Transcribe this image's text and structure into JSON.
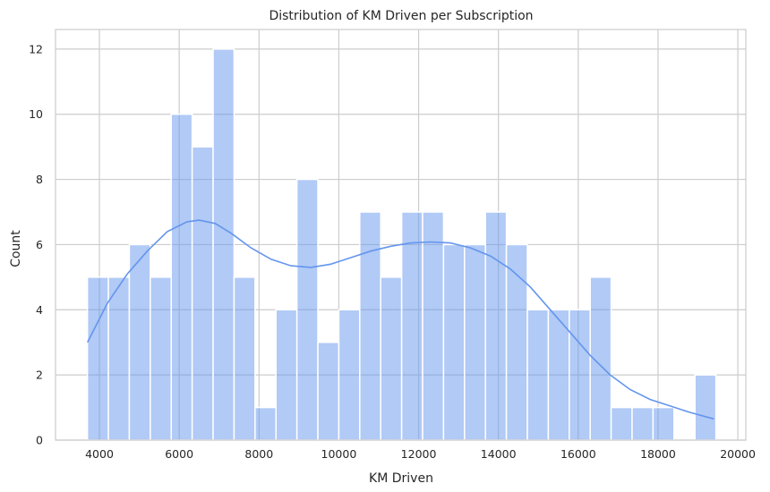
{
  "chart_data": {
    "type": "bar",
    "subtype": "histogram-with-kde",
    "title": "Distribution of KM Driven per Subscription",
    "xlabel": "KM Driven",
    "ylabel": "Count",
    "xlim": [
      2900,
      20200
    ],
    "ylim": [
      0,
      12.6
    ],
    "xticks": [
      4000,
      6000,
      8000,
      10000,
      12000,
      14000,
      16000,
      18000,
      20000
    ],
    "yticks": [
      0,
      2,
      4,
      6,
      8,
      10,
      12
    ],
    "grid": true,
    "bar_color": "#6495ed",
    "bins": {
      "start": 3700,
      "width": 525,
      "counts": [
        5,
        5,
        6,
        5,
        10,
        9,
        12,
        5,
        1,
        4,
        8,
        3,
        4,
        7,
        5,
        7,
        7,
        6,
        6,
        7,
        6,
        4,
        4,
        4,
        5,
        1,
        1,
        1,
        0,
        2
      ]
    },
    "kde": {
      "color": "#6495ed",
      "x": [
        3700,
        4200,
        4700,
        5200,
        5700,
        6200,
        6500,
        6900,
        7300,
        7800,
        8300,
        8800,
        9300,
        9800,
        10300,
        10800,
        11300,
        11800,
        12300,
        12800,
        13300,
        13800,
        14300,
        14800,
        15300,
        15800,
        16300,
        16800,
        17300,
        17800,
        18300,
        18800,
        19400
      ],
      "y": [
        3.0,
        4.2,
        5.1,
        5.8,
        6.4,
        6.7,
        6.75,
        6.65,
        6.35,
        5.9,
        5.55,
        5.35,
        5.3,
        5.4,
        5.6,
        5.8,
        5.95,
        6.05,
        6.08,
        6.05,
        5.9,
        5.65,
        5.25,
        4.7,
        4.0,
        3.3,
        2.6,
        2.0,
        1.55,
        1.25,
        1.05,
        0.85,
        0.65
      ]
    }
  }
}
